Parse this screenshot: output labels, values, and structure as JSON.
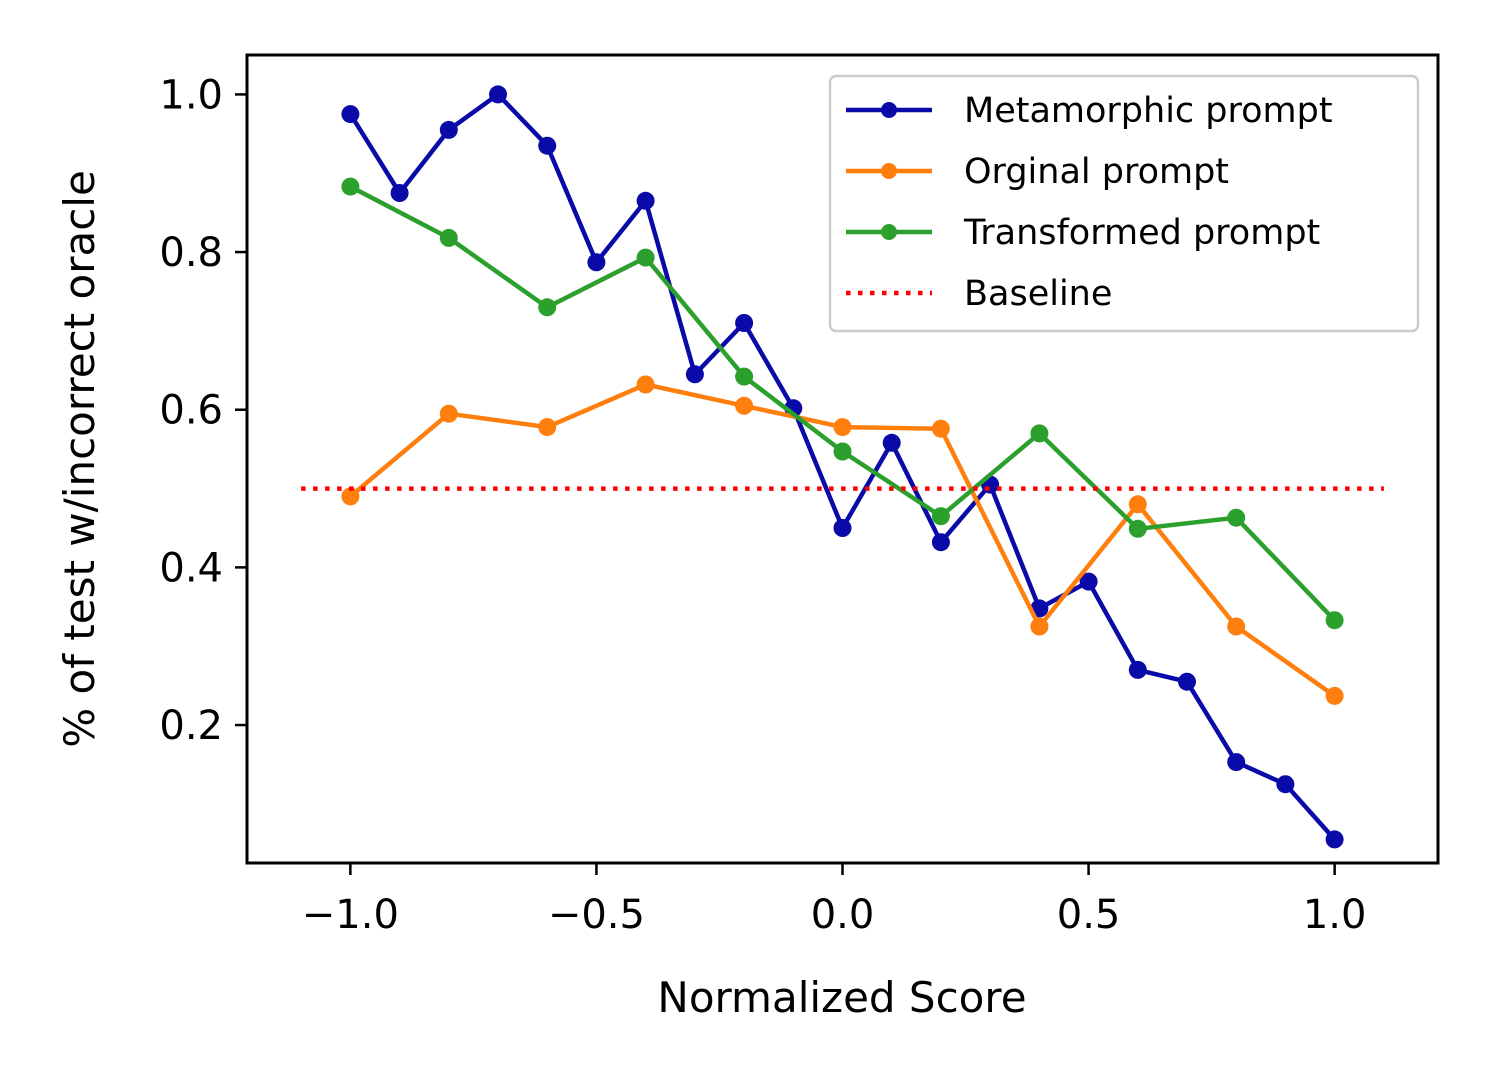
{
  "chart_data": {
    "type": "line",
    "title": "",
    "xlabel": "Normalized Score",
    "ylabel": "% of test w/incorrect oracle",
    "xlim": [
      -1.21,
      1.21
    ],
    "ylim": [
      0.025,
      1.05
    ],
    "xticks": [
      -1.0,
      -0.5,
      0.0,
      0.5,
      1.0
    ],
    "xtick_labels": [
      "−1.0",
      "−0.5",
      "0.0",
      "0.5",
      "1.0"
    ],
    "yticks": [
      0.2,
      0.4,
      0.6,
      0.8,
      1.0
    ],
    "ytick_labels": [
      "0.2",
      "0.4",
      "0.6",
      "0.8",
      "1.0"
    ],
    "grid": false,
    "legend_position": "top-right",
    "series": [
      {
        "name": "Metamorphic prompt",
        "color": "#0a0aa8",
        "marker": "circle",
        "style": "solid",
        "x": [
          -1.0,
          -0.9,
          -0.8,
          -0.7,
          -0.6,
          -0.5,
          -0.4,
          -0.3,
          -0.2,
          -0.1,
          0.0,
          0.1,
          0.2,
          0.3,
          0.4,
          0.5,
          0.6,
          0.7,
          0.8,
          0.9,
          1.0
        ],
        "y": [
          0.975,
          0.875,
          0.955,
          1.0,
          0.935,
          0.787,
          0.865,
          0.645,
          0.71,
          0.602,
          0.45,
          0.558,
          0.432,
          0.505,
          0.348,
          0.382,
          0.27,
          0.255,
          0.153,
          0.125,
          0.055
        ]
      },
      {
        "name": "Orginal prompt",
        "color": "#ff7f0e",
        "marker": "circle",
        "style": "solid",
        "x": [
          -1.0,
          -0.8,
          -0.6,
          -0.4,
          -0.2,
          0.0,
          0.2,
          0.4,
          0.6,
          0.8,
          1.0
        ],
        "y": [
          0.49,
          0.595,
          0.578,
          0.632,
          0.605,
          0.578,
          0.576,
          0.325,
          0.48,
          0.325,
          0.237
        ]
      },
      {
        "name": "Transformed prompt",
        "color": "#2ca02c",
        "marker": "circle",
        "style": "solid",
        "x": [
          -1.0,
          -0.8,
          -0.6,
          -0.4,
          -0.2,
          0.0,
          0.2,
          0.4,
          0.6,
          0.8,
          1.0
        ],
        "y": [
          0.883,
          0.818,
          0.73,
          0.793,
          0.642,
          0.547,
          0.465,
          0.57,
          0.449,
          0.463,
          0.333
        ]
      },
      {
        "name": "Baseline",
        "color": "#ff0000",
        "marker": "none",
        "style": "dotted",
        "x": [
          -1.1,
          1.1
        ],
        "y": [
          0.5,
          0.5
        ]
      }
    ]
  }
}
